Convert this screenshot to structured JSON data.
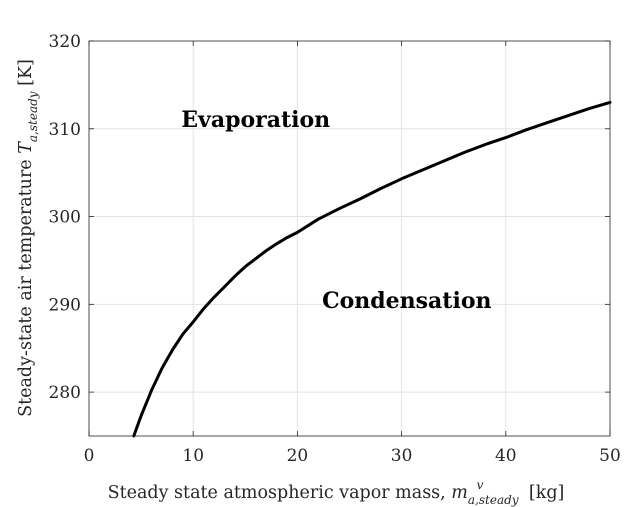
{
  "chart_data": {
    "type": "line",
    "xlabel": "Steady state atmospheric vapor mass, ",
    "xlabel_math": "m",
    "xlabel_sup": "v",
    "xlabel_sub": "a,steady",
    "xlabel_unit": " [kg]",
    "ylabel": "Steady-state air temperature ",
    "ylabel_math": "T",
    "ylabel_sub": "a,steady",
    "ylabel_unit": " [K]",
    "xlim": [
      0,
      50
    ],
    "ylim": [
      275,
      320
    ],
    "xticks": [
      0,
      10,
      20,
      30,
      40,
      50
    ],
    "yticks": [
      280,
      290,
      300,
      310,
      320
    ],
    "xtick_labels": [
      "0",
      "10",
      "20",
      "30",
      "40",
      "50"
    ],
    "ytick_labels": [
      "280",
      "290",
      "300",
      "310",
      "320"
    ],
    "grid": true,
    "series": [
      {
        "color": "#000000",
        "points": [
          [
            4.3,
            275.0
          ],
          [
            5,
            277.3
          ],
          [
            6,
            280.2
          ],
          [
            7,
            282.7
          ],
          [
            8,
            284.8
          ],
          [
            9,
            286.6
          ],
          [
            10,
            288.0
          ],
          [
            11,
            289.5
          ],
          [
            12,
            290.8
          ],
          [
            13,
            292.0
          ],
          [
            14,
            293.2
          ],
          [
            15,
            294.3
          ],
          [
            16,
            295.2
          ],
          [
            17,
            296.1
          ],
          [
            18,
            296.9
          ],
          [
            19,
            297.6
          ],
          [
            20,
            298.2
          ],
          [
            22,
            299.7
          ],
          [
            24,
            300.9
          ],
          [
            26,
            302.0
          ],
          [
            28,
            303.2
          ],
          [
            30,
            304.3
          ],
          [
            32,
            305.3
          ],
          [
            34,
            306.3
          ],
          [
            36,
            307.3
          ],
          [
            38,
            308.2
          ],
          [
            40,
            309.0
          ],
          [
            42,
            309.9
          ],
          [
            44,
            310.7
          ],
          [
            46,
            311.5
          ],
          [
            48,
            312.3
          ],
          [
            50,
            313.0
          ]
        ]
      }
    ],
    "annotations": [
      {
        "text": "Evaporation",
        "x": 16,
        "y": 310.2
      },
      {
        "text": "Condensation",
        "x": 30.5,
        "y": 289.6
      }
    ]
  }
}
